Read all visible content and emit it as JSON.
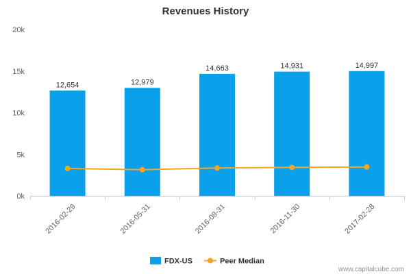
{
  "chart_data": {
    "type": "bar",
    "title": "Revenues History",
    "categories": [
      "2016-02-29",
      "2016-05-31",
      "2016-08-31",
      "2016-11-30",
      "2017-02-28"
    ],
    "series": [
      {
        "name": "FDX-US",
        "type": "bar",
        "color": "#0aa0ea",
        "values": [
          12654,
          12979,
          14663,
          14931,
          14997
        ],
        "labels": [
          "12,654",
          "12,979",
          "14,663",
          "14,931",
          "14,997"
        ]
      },
      {
        "name": "Peer Median",
        "type": "line",
        "color": "#f5a623",
        "values": [
          3300,
          3150,
          3350,
          3420,
          3480
        ]
      }
    ],
    "ylim": [
      0,
      20000
    ],
    "yticks": [
      0,
      5000,
      10000,
      15000,
      20000
    ],
    "ytick_labels": [
      "0k",
      "5k",
      "10k",
      "15k",
      "20k"
    ],
    "grid": false,
    "legend_position": "bottom-center"
  },
  "credit": "www.capitalcube.com"
}
